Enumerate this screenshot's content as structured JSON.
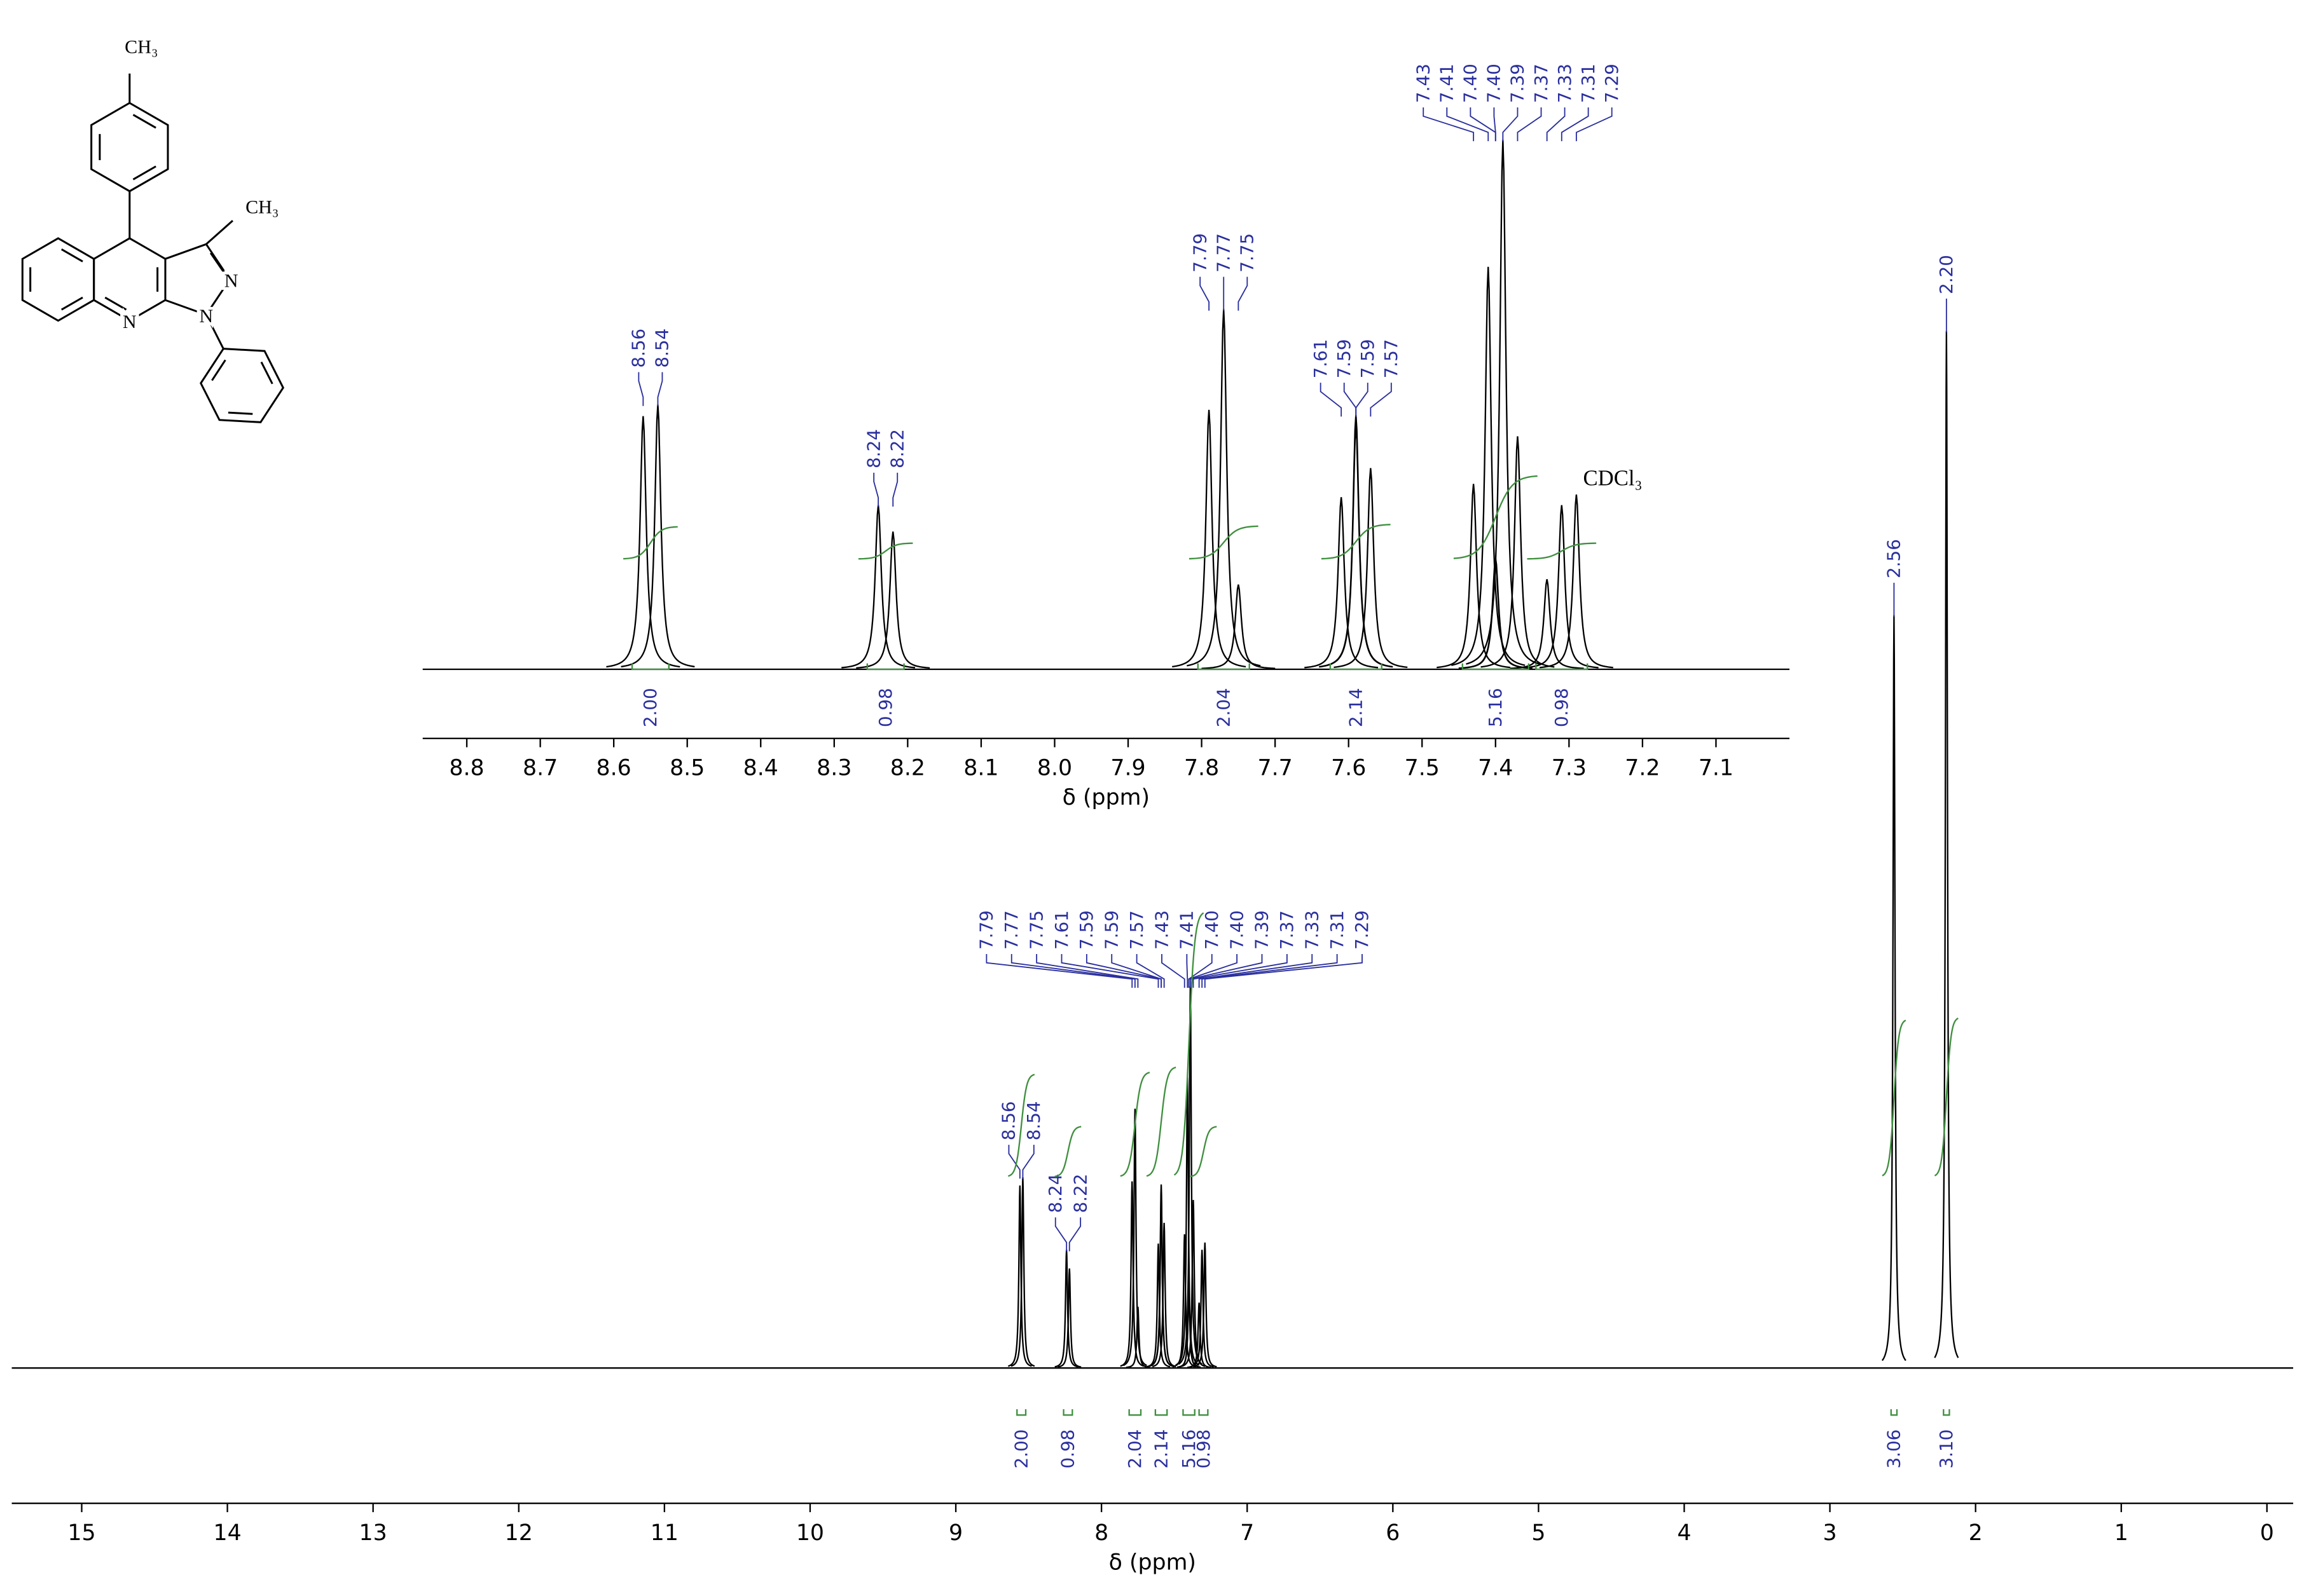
{
  "molecule": {
    "labels": [
      "CH₃",
      "CH₃",
      "N",
      "N",
      "N"
    ]
  },
  "chart_data": [
    {
      "type": "spectrum",
      "xlabel": "δ (ppm)",
      "xlim": [
        15.48,
        -0.18
      ],
      "xticks": [
        15,
        14,
        13,
        12,
        11,
        10,
        9,
        8,
        7,
        6,
        5,
        4,
        3,
        2,
        1,
        0
      ],
      "ylim": [
        0,
        120
      ],
      "color": "#000000",
      "label_color": "#2a2f9e",
      "integral_color": "#3f8f3f",
      "x": [
        8.56,
        8.54,
        8.24,
        8.22,
        7.79,
        7.77,
        7.75,
        7.61,
        7.59,
        7.59,
        7.57,
        7.43,
        7.41,
        7.4,
        7.4,
        7.39,
        7.37,
        7.33,
        7.31,
        7.29,
        2.56,
        2.2
      ],
      "values": [
        17.6,
        18.4,
        11.4,
        9.6,
        18,
        25,
        5.9,
        12,
        17.7,
        17,
        14,
        12.9,
        28,
        7.7,
        7.4,
        36.8,
        16.2,
        6.3,
        11.4,
        12.1,
        72.6,
        100
      ],
      "peak_labels": [
        "8.56",
        "8.54",
        "8.24",
        "8.22",
        "7.79",
        "7.77",
        "7.75",
        "7.61",
        "7.59",
        "7.59",
        "7.57",
        "7.43",
        "7.41",
        "7.40",
        "7.40",
        "7.39",
        "7.37",
        "7.33",
        "7.31",
        "7.29",
        "2.56",
        "2.20"
      ],
      "integrals": [
        {
          "range": [
            8.58,
            8.52
          ],
          "value": 2,
          "label": "2.00"
        },
        {
          "range": [
            8.26,
            8.2
          ],
          "value": 0.98,
          "label": "0.98"
        },
        {
          "range": [
            7.81,
            7.73
          ],
          "value": 2.04,
          "label": "2.04"
        },
        {
          "range": [
            7.63,
            7.55
          ],
          "value": 2.14,
          "label": "2.14"
        },
        {
          "range": [
            7.44,
            7.36
          ],
          "value": 5.16,
          "label": "5.16"
        },
        {
          "range": [
            7.33,
            7.27
          ],
          "value": 0.98,
          "label": "0.98"
        },
        {
          "range": [
            2.58,
            2.54
          ],
          "value": 3.06,
          "label": "3.06"
        },
        {
          "range": [
            2.22,
            2.18
          ],
          "value": 3.1,
          "label": "3.10"
        }
      ]
    },
    {
      "type": "spectrum",
      "xlabel": "δ (ppm)",
      "annotation": "CDCl₃",
      "xlim": [
        8.86,
        7.0
      ],
      "xticks": [
        8.8,
        8.7,
        8.6,
        8.5,
        8.4,
        8.3,
        8.2,
        8.1,
        {
          "value": 8,
          "label": "8.0"
        },
        7.9,
        7.8,
        7.7,
        7.6,
        7.5,
        7.4,
        7.3,
        7.2,
        7.1
      ],
      "ylim": [
        0,
        110
      ],
      "color": "#000000",
      "label_color": "#2a2f9e",
      "integral_color": "#3f8f3f",
      "x": [
        8.56,
        8.54,
        8.24,
        8.22,
        7.79,
        7.77,
        7.75,
        7.61,
        7.59,
        7.59,
        7.57,
        7.43,
        7.41,
        7.4,
        7.4,
        7.39,
        7.37,
        7.33,
        7.31,
        7.29
      ],
      "values": [
        47.8,
        50,
        31,
        26,
        49,
        68,
        16,
        32.5,
        48,
        46,
        38,
        35,
        76,
        21,
        20,
        100,
        44,
        17,
        31,
        33
      ],
      "peak_labels": [
        "8.56",
        "8.54",
        "8.24",
        "8.22",
        "7.79",
        "7.77",
        "7.75",
        "7.61",
        "7.59",
        "7.59",
        "7.57",
        "7.43",
        "7.41",
        "7.40",
        "7.40",
        "7.39",
        "7.37",
        "7.33",
        "7.31",
        "7.29"
      ],
      "integrals": [
        {
          "range": [
            8.575,
            8.525
          ],
          "value": 2,
          "label": "2.00"
        },
        {
          "range": [
            8.255,
            8.205
          ],
          "value": 0.98,
          "label": "0.98"
        },
        {
          "range": [
            7.805,
            7.735
          ],
          "value": 2.04,
          "label": "2.04"
        },
        {
          "range": [
            7.625,
            7.555
          ],
          "value": 2.14,
          "label": "2.14"
        },
        {
          "range": [
            7.445,
            7.355
          ],
          "value": 5.16,
          "label": "5.16"
        },
        {
          "range": [
            7.345,
            7.275
          ],
          "value": 0.98,
          "label": "0.98"
        }
      ]
    }
  ]
}
